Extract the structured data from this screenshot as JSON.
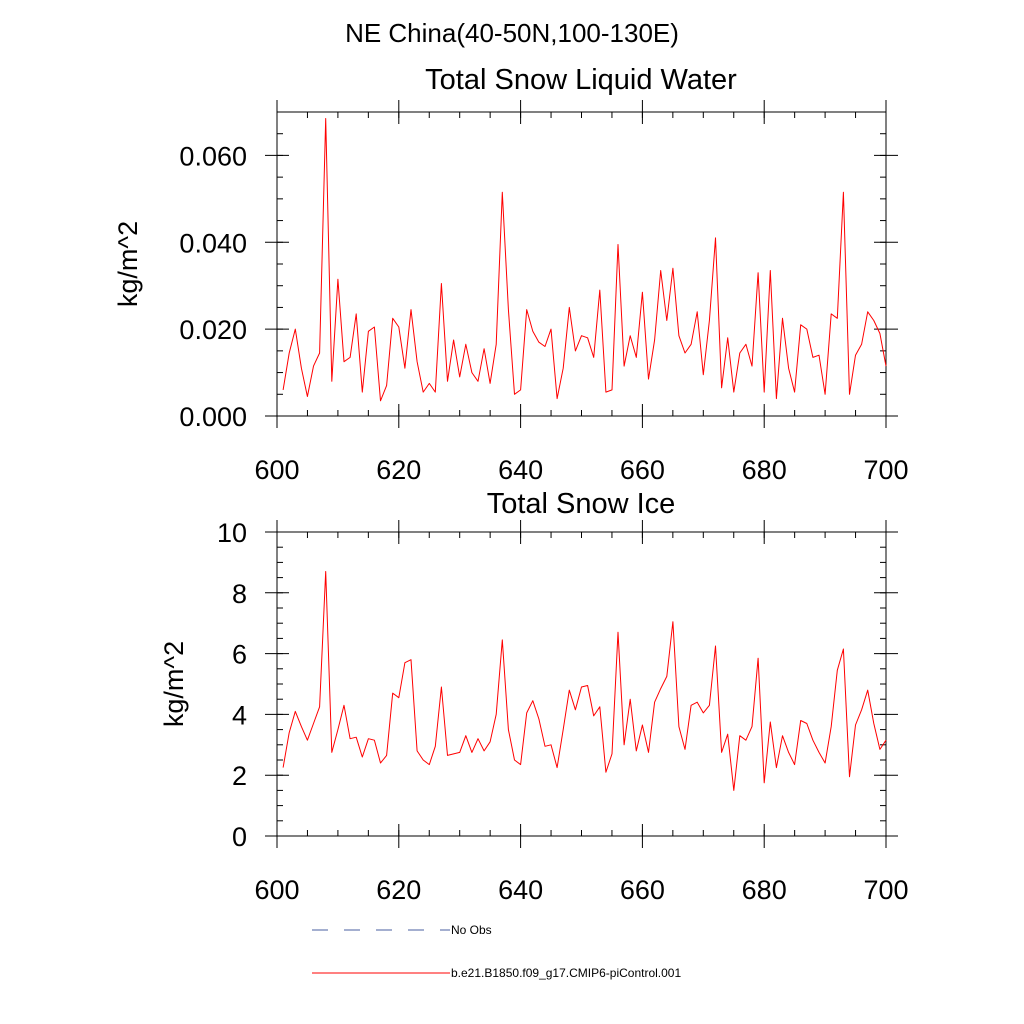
{
  "figure_title": "NE China(40-50N,100-130E)",
  "colors": {
    "model": "#ff0000",
    "obs": "#4a5fa0",
    "axis": "#000000"
  },
  "legend": {
    "entries": [
      {
        "label": "No Obs",
        "style": "dashed",
        "color": "#4a5fa0"
      },
      {
        "label": "b.e21.B1850.f09_g17.CMIP6-piControl.001",
        "style": "solid",
        "color": "#ff0000"
      }
    ]
  },
  "chart_data": [
    {
      "type": "line",
      "title": "Total Snow Liquid Water",
      "xlabel": "",
      "ylabel": "kg/m^2",
      "xlim": [
        600,
        700
      ],
      "ylim": [
        0,
        0.07
      ],
      "xticks": [
        600,
        620,
        640,
        660,
        680,
        700
      ],
      "xtick_labels": [
        "600",
        "620",
        "640",
        "660",
        "680",
        "700"
      ],
      "yticks": [
        0,
        0.02,
        0.04,
        0.06
      ],
      "ytick_labels": [
        "0.000",
        "0.020",
        "0.040",
        "0.060"
      ],
      "x_start": 601,
      "series": [
        {
          "name": "b.e21.B1850.f09_g17.CMIP6-piControl.001",
          "color": "#ff0000",
          "values": [
            0.006,
            0.0145,
            0.02,
            0.011,
            0.0045,
            0.0115,
            0.0145,
            0.0685,
            0.008,
            0.0315,
            0.0125,
            0.0135,
            0.0235,
            0.0055,
            0.0195,
            0.0205,
            0.0035,
            0.007,
            0.0225,
            0.0205,
            0.011,
            0.0245,
            0.0125,
            0.0055,
            0.0075,
            0.0055,
            0.0305,
            0.008,
            0.0175,
            0.009,
            0.0165,
            0.01,
            0.008,
            0.0155,
            0.0075,
            0.0165,
            0.0515,
            0.0245,
            0.005,
            0.006,
            0.0245,
            0.0195,
            0.017,
            0.016,
            0.02,
            0.004,
            0.011,
            0.025,
            0.015,
            0.0185,
            0.018,
            0.0135,
            0.029,
            0.0055,
            0.006,
            0.0395,
            0.0115,
            0.0185,
            0.0135,
            0.0285,
            0.0085,
            0.0175,
            0.0335,
            0.022,
            0.034,
            0.0185,
            0.0145,
            0.0165,
            0.024,
            0.0095,
            0.022,
            0.041,
            0.0065,
            0.018,
            0.0055,
            0.0145,
            0.0165,
            0.0115,
            0.033,
            0.0055,
            0.0335,
            0.004,
            0.0225,
            0.011,
            0.0055,
            0.021,
            0.02,
            0.0135,
            0.014,
            0.005,
            0.0235,
            0.0225,
            0.0515,
            0.005,
            0.014,
            0.0165,
            0.024,
            0.022,
            0.019,
            0.0115
          ]
        }
      ]
    },
    {
      "type": "line",
      "title": "Total Snow Ice",
      "xlabel": "",
      "ylabel": "kg/m^2",
      "xlim": [
        600,
        700
      ],
      "ylim": [
        0,
        10
      ],
      "xticks": [
        600,
        620,
        640,
        660,
        680,
        700
      ],
      "xtick_labels": [
        "600",
        "620",
        "640",
        "660",
        "680",
        "700"
      ],
      "yticks": [
        0,
        2,
        4,
        6,
        8,
        10
      ],
      "ytick_labels": [
        "0",
        "2",
        "4",
        "6",
        "8",
        "10"
      ],
      "x_start": 601,
      "series": [
        {
          "name": "b.e21.B1850.f09_g17.CMIP6-piControl.001",
          "color": "#ff0000",
          "values": [
            2.25,
            3.4,
            4.1,
            3.6,
            3.15,
            3.7,
            4.25,
            8.7,
            2.75,
            3.5,
            4.3,
            3.2,
            3.25,
            2.6,
            3.2,
            3.15,
            2.4,
            2.65,
            4.7,
            4.55,
            5.7,
            5.8,
            2.8,
            2.5,
            2.35,
            2.95,
            4.9,
            2.65,
            2.7,
            2.75,
            3.3,
            2.75,
            3.2,
            2.8,
            3.1,
            4.0,
            6.45,
            3.5,
            2.5,
            2.35,
            4.05,
            4.45,
            3.85,
            2.95,
            3.0,
            2.25,
            3.5,
            4.8,
            4.15,
            4.9,
            4.95,
            3.95,
            4.25,
            2.1,
            2.7,
            6.7,
            3.0,
            4.5,
            2.8,
            3.65,
            2.75,
            4.4,
            4.85,
            5.25,
            7.05,
            3.6,
            2.85,
            4.3,
            4.4,
            4.05,
            4.3,
            6.25,
            2.75,
            3.35,
            1.5,
            3.3,
            3.15,
            3.6,
            5.85,
            1.75,
            3.75,
            2.25,
            3.3,
            2.75,
            2.35,
            3.8,
            3.7,
            3.15,
            2.75,
            2.4,
            3.6,
            5.45,
            6.15,
            1.95,
            3.65,
            4.15,
            4.8,
            3.7,
            2.85,
            3.15
          ]
        }
      ]
    }
  ]
}
